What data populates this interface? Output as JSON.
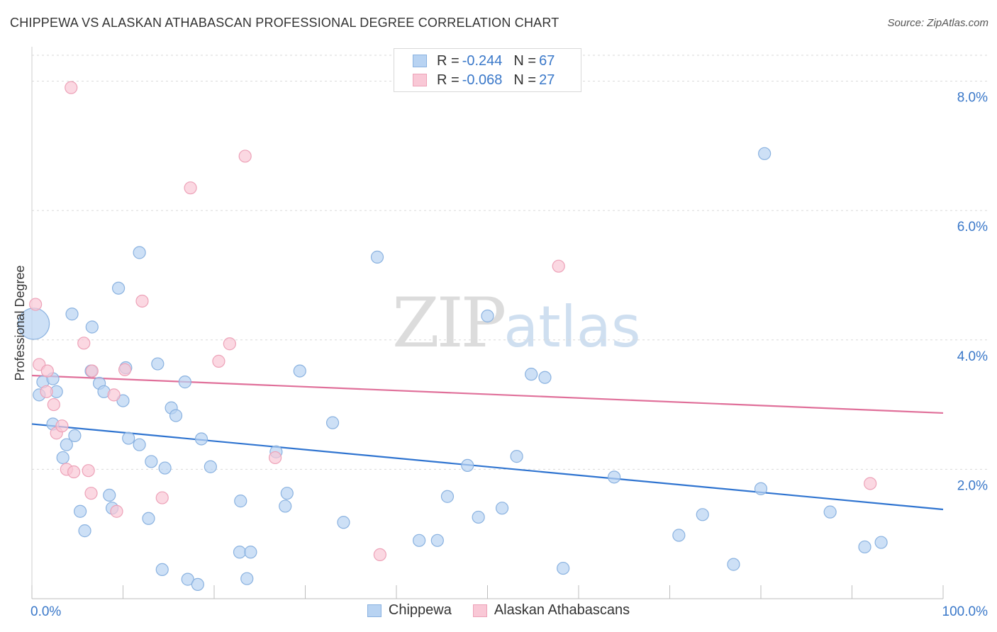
{
  "header": {
    "title": "CHIPPEWA VS ALASKAN ATHABASCAN PROFESSIONAL DEGREE CORRELATION CHART",
    "source": "Source: ZipAtlas.com"
  },
  "watermark": {
    "zip": "ZIP",
    "atlas": "atlas"
  },
  "legend": {
    "rows": [
      {
        "r_label": "R =",
        "r_value": "-0.244",
        "n_label": "N =",
        "n_value": "67"
      },
      {
        "r_label": "R =",
        "r_value": "-0.068",
        "n_label": "N =",
        "n_value": "27"
      }
    ]
  },
  "colors": {
    "chippewa_fill": "#b8d3f2",
    "chippewa_stroke": "#8ab2e0",
    "chippewa_line": "#2f74d0",
    "athabascan_fill": "#f9c8d6",
    "athabascan_stroke": "#eda2b8",
    "athabascan_line": "#e0709a",
    "grid": "#d9d9d9",
    "axis_label": "#3a78c9"
  },
  "chart_data": {
    "type": "scatter",
    "title": "CHIPPEWA VS ALASKAN ATHABASCAN PROFESSIONAL DEGREE CORRELATION CHART",
    "xlabel": "",
    "ylabel": "Professional Degree",
    "xlim": [
      0,
      100
    ],
    "ylim": [
      0,
      8.4
    ],
    "x_tick_labels": [
      "0.0%",
      "100.0%"
    ],
    "y_ticks": [
      2,
      4,
      6,
      8
    ],
    "y_tick_labels": [
      "2.0%",
      "4.0%",
      "6.0%",
      "8.0%"
    ],
    "series": [
      {
        "name": "Chippewa",
        "trend": {
          "x": [
            0,
            100
          ],
          "y": [
            2.7,
            1.38
          ]
        },
        "points": [
          [
            0.2,
            4.25,
            "large"
          ],
          [
            0.8,
            3.15
          ],
          [
            1.2,
            3.35
          ],
          [
            2.3,
            2.7
          ],
          [
            2.3,
            3.4
          ],
          [
            2.7,
            3.2
          ],
          [
            3.4,
            2.18
          ],
          [
            3.8,
            2.38
          ],
          [
            4.4,
            4.4
          ],
          [
            4.7,
            2.52
          ],
          [
            5.3,
            1.35
          ],
          [
            5.8,
            1.05
          ],
          [
            6.5,
            3.52
          ],
          [
            6.6,
            4.2
          ],
          [
            7.4,
            3.33
          ],
          [
            7.9,
            3.2
          ],
          [
            8.5,
            1.6
          ],
          [
            8.8,
            1.4
          ],
          [
            9.5,
            4.8
          ],
          [
            10.0,
            3.06
          ],
          [
            10.3,
            3.57
          ],
          [
            10.6,
            2.48
          ],
          [
            11.8,
            2.38
          ],
          [
            11.8,
            5.35
          ],
          [
            12.8,
            1.24
          ],
          [
            13.1,
            2.12
          ],
          [
            13.8,
            3.63
          ],
          [
            14.3,
            0.45
          ],
          [
            14.6,
            2.02
          ],
          [
            15.3,
            2.95
          ],
          [
            15.8,
            2.83
          ],
          [
            16.8,
            3.35
          ],
          [
            17.1,
            0.3
          ],
          [
            18.2,
            0.22
          ],
          [
            18.6,
            2.47
          ],
          [
            19.6,
            2.04
          ],
          [
            22.8,
            0.72
          ],
          [
            22.9,
            1.51
          ],
          [
            23.6,
            0.31
          ],
          [
            24.0,
            0.72
          ],
          [
            26.8,
            2.27
          ],
          [
            27.8,
            1.43
          ],
          [
            28.0,
            1.63
          ],
          [
            29.4,
            3.52
          ],
          [
            33.0,
            2.72
          ],
          [
            34.2,
            1.18
          ],
          [
            37.9,
            5.28
          ],
          [
            42.5,
            0.9
          ],
          [
            44.5,
            0.9
          ],
          [
            45.6,
            1.58
          ],
          [
            47.8,
            2.06
          ],
          [
            49.0,
            1.26
          ],
          [
            50.0,
            4.37
          ],
          [
            51.6,
            1.4
          ],
          [
            53.2,
            2.2
          ],
          [
            54.8,
            3.47
          ],
          [
            56.3,
            3.42
          ],
          [
            58.3,
            0.47
          ],
          [
            63.9,
            1.88
          ],
          [
            71.0,
            0.98
          ],
          [
            73.6,
            1.3
          ],
          [
            77.0,
            0.53
          ],
          [
            80.0,
            1.7
          ],
          [
            80.4,
            6.88
          ],
          [
            87.6,
            1.34
          ],
          [
            91.4,
            0.8
          ],
          [
            93.2,
            0.87
          ]
        ]
      },
      {
        "name": "Alaskan Athabascans",
        "trend": {
          "x": [
            0,
            100
          ],
          "y": [
            3.45,
            2.87
          ]
        },
        "points": [
          [
            0.4,
            4.55
          ],
          [
            0.8,
            3.62
          ],
          [
            1.7,
            3.52
          ],
          [
            1.6,
            3.2
          ],
          [
            2.4,
            3.0
          ],
          [
            2.7,
            2.56
          ],
          [
            3.3,
            2.67
          ],
          [
            3.8,
            2.0
          ],
          [
            4.6,
            1.96
          ],
          [
            5.7,
            3.95
          ],
          [
            6.2,
            1.98
          ],
          [
            6.5,
            1.63
          ],
          [
            6.6,
            3.52
          ],
          [
            9.0,
            3.15
          ],
          [
            9.3,
            1.35
          ],
          [
            10.2,
            3.54
          ],
          [
            12.1,
            4.6
          ],
          [
            14.3,
            1.56
          ],
          [
            17.4,
            6.35
          ],
          [
            20.5,
            3.67
          ],
          [
            21.7,
            3.94
          ],
          [
            23.4,
            6.84
          ],
          [
            26.7,
            2.18
          ],
          [
            38.2,
            0.68
          ],
          [
            57.8,
            5.14
          ],
          [
            92.0,
            1.78
          ],
          [
            4.3,
            7.9
          ]
        ]
      }
    ]
  },
  "bottom_legend": {
    "items": [
      {
        "label": "Chippewa"
      },
      {
        "label": "Alaskan Athabascans"
      }
    ]
  }
}
